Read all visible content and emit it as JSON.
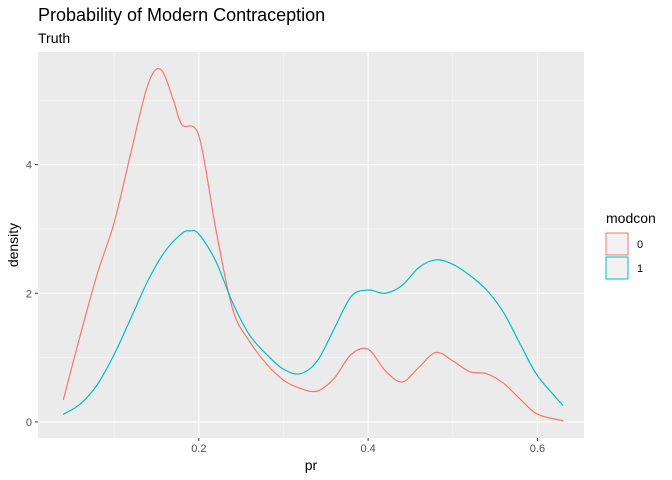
{
  "chart_data": {
    "type": "line",
    "title": "Probability of Modern Contraception",
    "subtitle": "Truth",
    "xlabel": "pr",
    "ylabel": "density",
    "xlim": [
      0.01,
      0.655
    ],
    "ylim": [
      -0.25,
      5.75
    ],
    "x_ticks": [
      0.2,
      0.4,
      0.6
    ],
    "x_tick_labels": [
      "0.2",
      "0.4",
      "0.6"
    ],
    "y_ticks": [
      0,
      2,
      4
    ],
    "y_tick_labels": [
      "0",
      "2",
      "4"
    ],
    "grid": true,
    "legend": {
      "title": "modcon",
      "position": "right"
    },
    "series": [
      {
        "name": "0",
        "color": "#F8766D",
        "x": [
          0.04,
          0.06,
          0.08,
          0.1,
          0.12,
          0.14,
          0.155,
          0.17,
          0.18,
          0.2,
          0.22,
          0.24,
          0.26,
          0.28,
          0.3,
          0.32,
          0.34,
          0.36,
          0.38,
          0.4,
          0.42,
          0.44,
          0.46,
          0.48,
          0.5,
          0.52,
          0.54,
          0.56,
          0.58,
          0.6,
          0.63
        ],
        "y": [
          0.35,
          1.35,
          2.3,
          3.1,
          4.2,
          5.25,
          5.48,
          5.0,
          4.62,
          4.45,
          3.0,
          1.75,
          1.25,
          0.9,
          0.65,
          0.52,
          0.48,
          0.68,
          1.05,
          1.13,
          0.8,
          0.62,
          0.85,
          1.08,
          0.95,
          0.78,
          0.75,
          0.6,
          0.35,
          0.12,
          0.02
        ]
      },
      {
        "name": "1",
        "color": "#00BFC4",
        "x": [
          0.04,
          0.06,
          0.08,
          0.1,
          0.12,
          0.14,
          0.16,
          0.18,
          0.19,
          0.2,
          0.22,
          0.24,
          0.26,
          0.28,
          0.3,
          0.32,
          0.34,
          0.36,
          0.38,
          0.4,
          0.42,
          0.44,
          0.46,
          0.48,
          0.5,
          0.52,
          0.54,
          0.56,
          0.58,
          0.6,
          0.63
        ],
        "y": [
          0.12,
          0.28,
          0.58,
          1.05,
          1.62,
          2.2,
          2.65,
          2.93,
          2.97,
          2.92,
          2.5,
          1.85,
          1.35,
          1.05,
          0.82,
          0.75,
          0.95,
          1.45,
          1.95,
          2.05,
          2.0,
          2.12,
          2.4,
          2.52,
          2.45,
          2.28,
          2.05,
          1.7,
          1.2,
          0.72,
          0.26
        ]
      }
    ]
  }
}
